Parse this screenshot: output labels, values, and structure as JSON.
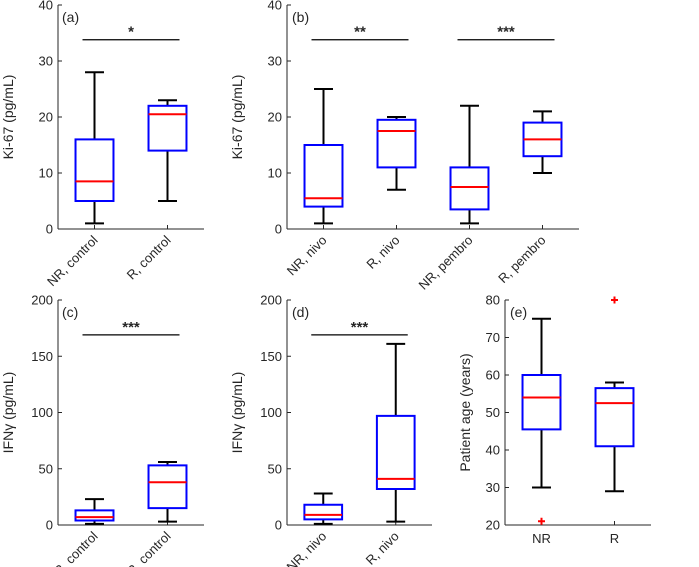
{
  "colors": {
    "box": "#0000ff",
    "median": "#ff0000",
    "whisker": "#000000",
    "axis": "#262626",
    "outlier": "#ff0000"
  },
  "chart_data": [
    {
      "type": "box",
      "panel_label": "(a)",
      "ylabel": "Ki-67 (pg/mL)",
      "ylim": [
        0,
        40
      ],
      "yticks": [
        "0",
        "10",
        "20",
        "30",
        "40"
      ],
      "categories": [
        "NR, control",
        "R, control"
      ],
      "boxes": [
        {
          "min": 1,
          "q1": 5,
          "median": 8.5,
          "q3": 16,
          "max": 28
        },
        {
          "min": 5,
          "q1": 14,
          "median": 20.5,
          "q3": 22,
          "max": 23
        }
      ],
      "significance": [
        {
          "from": 0,
          "to": 1,
          "label": "*",
          "y": 33.8
        }
      ]
    },
    {
      "type": "box",
      "panel_label": "(b)",
      "ylabel": "Ki-67 (pg/mL)",
      "ylim": [
        0,
        40
      ],
      "yticks": [
        "0",
        "10",
        "20",
        "30",
        "40"
      ],
      "categories": [
        "NR, nivo",
        "R, nivo",
        "NR, pembro",
        "R, pembro"
      ],
      "boxes": [
        {
          "min": 1,
          "q1": 4,
          "median": 5.5,
          "q3": 15,
          "max": 25
        },
        {
          "min": 7,
          "q1": 11,
          "median": 17.5,
          "q3": 19.5,
          "max": 20
        },
        {
          "min": 1,
          "q1": 3.5,
          "median": 7.5,
          "q3": 11,
          "max": 22
        },
        {
          "min": 10,
          "q1": 13,
          "median": 16,
          "q3": 19,
          "max": 21
        }
      ],
      "significance": [
        {
          "from": 0,
          "to": 1,
          "label": "**",
          "y": 33.8
        },
        {
          "from": 2,
          "to": 3,
          "label": "***",
          "y": 33.8
        }
      ]
    },
    {
      "type": "box",
      "panel_label": "(c)",
      "ylabel": "IFNγ (pg/mL)",
      "ylim": [
        0,
        200
      ],
      "yticks": [
        "0",
        "50",
        "100",
        "150",
        "200"
      ],
      "categories": [
        "NR, control",
        "R, control"
      ],
      "boxes": [
        {
          "min": 1,
          "q1": 4,
          "median": 7,
          "q3": 13,
          "max": 23
        },
        {
          "min": 3,
          "q1": 15,
          "median": 38,
          "q3": 53,
          "max": 56
        }
      ],
      "significance": [
        {
          "from": 0,
          "to": 1,
          "label": "***",
          "y": 169
        }
      ]
    },
    {
      "type": "box",
      "panel_label": "(d)",
      "ylabel": "IFNγ (pg/mL)",
      "ylim": [
        0,
        200
      ],
      "yticks": [
        "0",
        "50",
        "100",
        "150",
        "200"
      ],
      "categories": [
        "NR, nivo",
        "R, nivo"
      ],
      "boxes": [
        {
          "min": 1,
          "q1": 5,
          "median": 9,
          "q3": 18,
          "max": 28
        },
        {
          "min": 3,
          "q1": 32,
          "median": 41,
          "q3": 97,
          "max": 161
        }
      ],
      "significance": [
        {
          "from": 0,
          "to": 1,
          "label": "***",
          "y": 169
        }
      ]
    },
    {
      "type": "box",
      "panel_label": "(e)",
      "ylabel": "Patient age (years)",
      "ylim": [
        20,
        80
      ],
      "yticks": [
        "20",
        "30",
        "40",
        "50",
        "60",
        "70",
        "80"
      ],
      "categories": [
        "NR",
        "R"
      ],
      "boxes": [
        {
          "min": 30,
          "q1": 45.5,
          "median": 54,
          "q3": 60,
          "max": 75,
          "outliers": [
            21
          ]
        },
        {
          "min": 29,
          "q1": 41,
          "median": 52.5,
          "q3": 56.5,
          "max": 58,
          "outliers": [
            80
          ]
        }
      ],
      "significance": []
    }
  ]
}
